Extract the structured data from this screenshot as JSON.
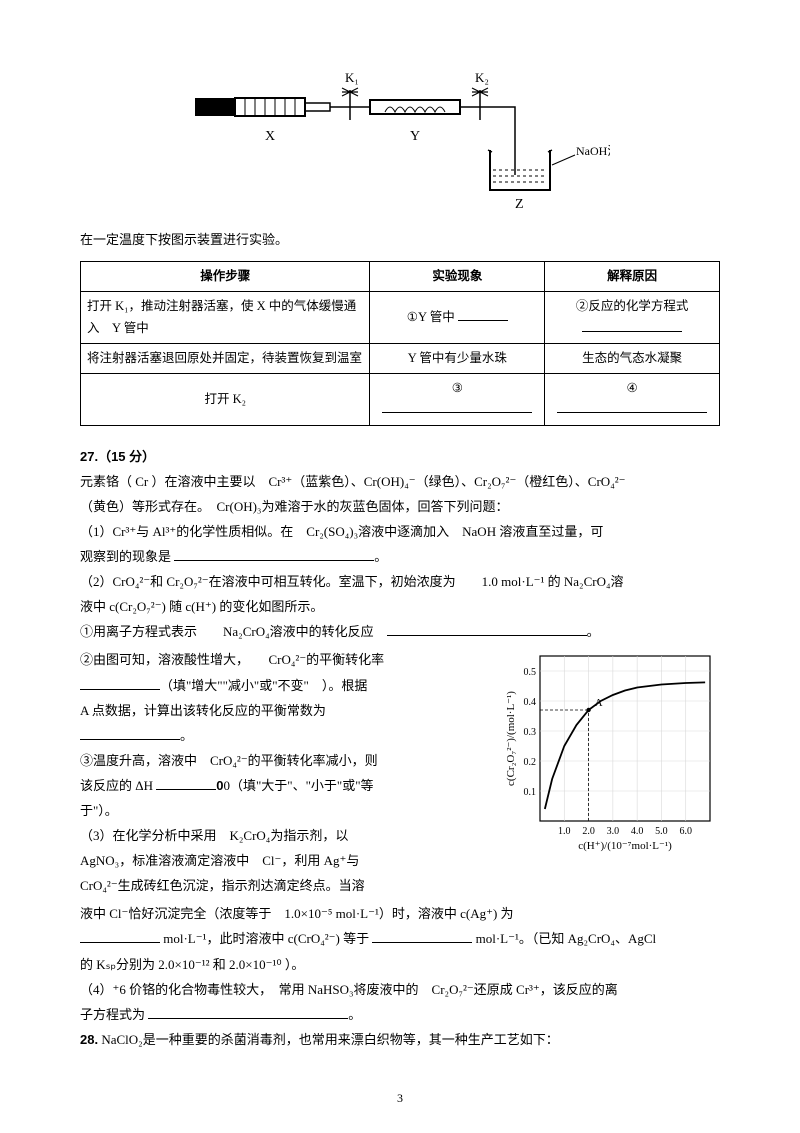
{
  "diagram": {
    "labels": {
      "X": "X",
      "Y": "Y",
      "Z": "Z",
      "K1": "K₁",
      "K2": "K₂",
      "naoh": "NaOH溶液"
    }
  },
  "caption": "在一定温度下按图示装置进行实验。",
  "table": {
    "header": [
      "操作步骤",
      "实验现象",
      "解释原因"
    ],
    "rows": [
      [
        "打开 K₁，推动注射器活塞，使 X 中的气体缓慢通入　Y 管中",
        "①Y 管中",
        "②反应的化学方程式"
      ],
      [
        "将注射器活塞退回原处并固定，待装置恢复到温室",
        "Y 管中有少量水珠",
        "生态的气态水凝聚"
      ],
      [
        "打开 K₂",
        "③",
        "④"
      ]
    ]
  },
  "q27": {
    "title": "27.（15 分）",
    "intro1": "元素铬（ Cr ）在溶液中主要以　Cr³⁺（蓝紫色）、Cr(OH)₄⁻（绿色）、Cr₂O₇²⁻（橙红色）、CrO₄²⁻",
    "intro2": "（黄色）等形式存在。　Cr(OH)₃为难溶于水的灰蓝色固体，回答下列问题：",
    "p1": "（1）Cr³⁺与 Al³⁺的化学性质相似。在　Cr₂(SO₄)₃溶液中逐滴加入　NaOH 溶液直至过量，可",
    "p1b": "观察到的现象是",
    "p2": "（2）CrO₄²⁻和 Cr₂O₇²⁻在溶液中可相互转化。室温下，初始浓度为　　1.0 mol·L⁻¹ 的 Na₂CrO₄溶",
    "p2b": "液中 c(Cr₂O₇²⁻) 随 c(H⁺) 的变化如图所示。",
    "p2_1": "①用离子方程式表示　　Na₂CrO₄溶液中的转化反应",
    "p2_2a": "②由图可知，溶液酸性增大，　　CrO₄²⁻的平衡转化率",
    "p2_2b": "（填\"增大\"\"减小\"或\"不变\"　）。根据",
    "p2_2c": "A 点数据，计算出该转化反应的平衡常数为",
    "p2_3a": "③温度升高，溶液中　CrO₄²⁻的平衡转化率减小，则",
    "p2_3b": "该反应的 ΔH",
    "p2_3c": "0（填\"大于\"、\"小于\"或\"等",
    "p2_3d": "于\"）。",
    "p3a": "（3）在化学分析中采用　K₂CrO₄为指示剂，以",
    "p3b": "AgNO₃，标准溶液滴定溶液中　Cl⁻，利用 Ag⁺与",
    "p3c": "CrO₄²⁻生成砖红色沉淀，指示剂达滴定终点。当溶",
    "p3d": "液中 Cl⁻恰好沉淀完全（浓度等于　1.0×10⁻⁵ mol·L⁻¹）时，溶液中 c(Ag⁺) 为",
    "p3e1": "mol·L⁻¹，此时溶液中 c(CrO₄²⁻) 等于",
    "p3e2": "mol·L⁻¹。（已知 Ag₂CrO₄、AgCl",
    "p3f": "的 Kₛₚ分别为 2.0×10⁻¹² 和 2.0×10⁻¹⁰ ）。",
    "p4a": "（4）⁺6 价铬的化合物毒性较大，　常用 NaHSO₃将废液中的　Cr₂O₇²⁻还原成 Cr³⁺，该反应的离",
    "p4b": "子方程式为"
  },
  "q28": "28. NaClO₂是一种重要的杀菌消毒剂，也常用来漂白织物等，其一种生产工艺如下：",
  "chart": {
    "xlabel": "c(H⁺)/(10⁻⁷mol·L⁻¹)",
    "ylabel": "c(Cr₂O₇²⁻)/(mol·L⁻¹)",
    "xticks": [
      "1.0",
      "2.0",
      "3.0",
      "4.0",
      "5.0",
      "6.0"
    ],
    "yticks": [
      "0.1",
      "0.2",
      "0.3",
      "0.4",
      "0.5"
    ],
    "xlim": [
      0,
      7
    ],
    "ylim": [
      0,
      0.55
    ],
    "curve": [
      [
        0.2,
        0.04
      ],
      [
        0.5,
        0.14
      ],
      [
        1.0,
        0.25
      ],
      [
        1.5,
        0.32
      ],
      [
        2.0,
        0.37
      ],
      [
        2.5,
        0.4
      ],
      [
        3.0,
        0.42
      ],
      [
        3.5,
        0.435
      ],
      [
        4.0,
        0.445
      ],
      [
        5.0,
        0.455
      ],
      [
        6.0,
        0.46
      ],
      [
        6.8,
        0.462
      ]
    ],
    "point_label": "A",
    "point_xy": [
      2.0,
      0.37
    ],
    "bg": "#ffffff",
    "grid": "#d9d9d9",
    "line": "#000000",
    "pt": "#000000",
    "dash": "#000000"
  },
  "pagenum": "3",
  "hmark": ""
}
